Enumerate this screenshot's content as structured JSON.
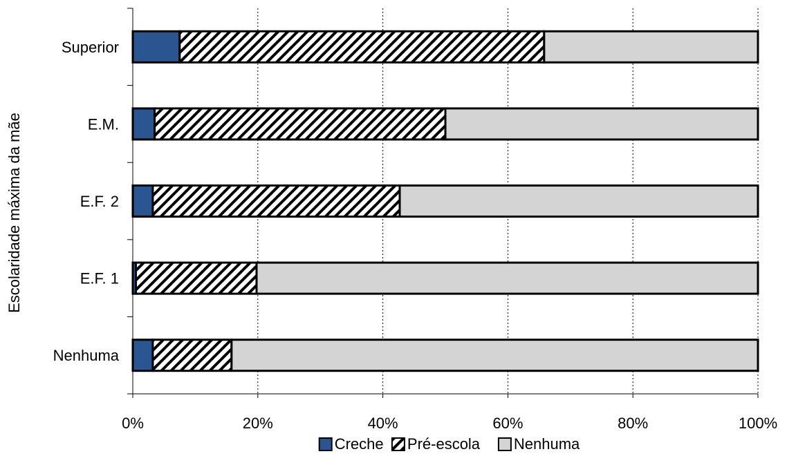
{
  "chart_data": {
    "type": "bar",
    "orientation": "horizontal",
    "stacked": "percent",
    "ylabel": "Escolaridade máxima da mãe",
    "xlabel": "",
    "xlim": [
      0,
      100
    ],
    "x_ticks": [
      "0%",
      "20%",
      "40%",
      "60%",
      "80%",
      "100%"
    ],
    "categories": [
      "Superior",
      "E.M.",
      "E.F. 2",
      "E.F. 1",
      "Nenhuma"
    ],
    "series": [
      {
        "name": "Creche",
        "values": [
          7.5,
          3.5,
          3.2,
          0.5,
          3.2
        ],
        "color": "#2a5591",
        "pattern": "solid"
      },
      {
        "name": "Pré-escola",
        "values": [
          58.3,
          46.5,
          39.5,
          19.3,
          12.6
        ],
        "color": "#ffffff",
        "pattern": "diagonal-hatch"
      },
      {
        "name": "Nenhuma",
        "values": [
          34.2,
          50.0,
          57.3,
          80.2,
          84.2
        ],
        "color": "#d4d4d4",
        "pattern": "solid"
      }
    ],
    "grid": {
      "vertical": true,
      "style": "dotted"
    },
    "legend": {
      "position": "bottom"
    }
  }
}
